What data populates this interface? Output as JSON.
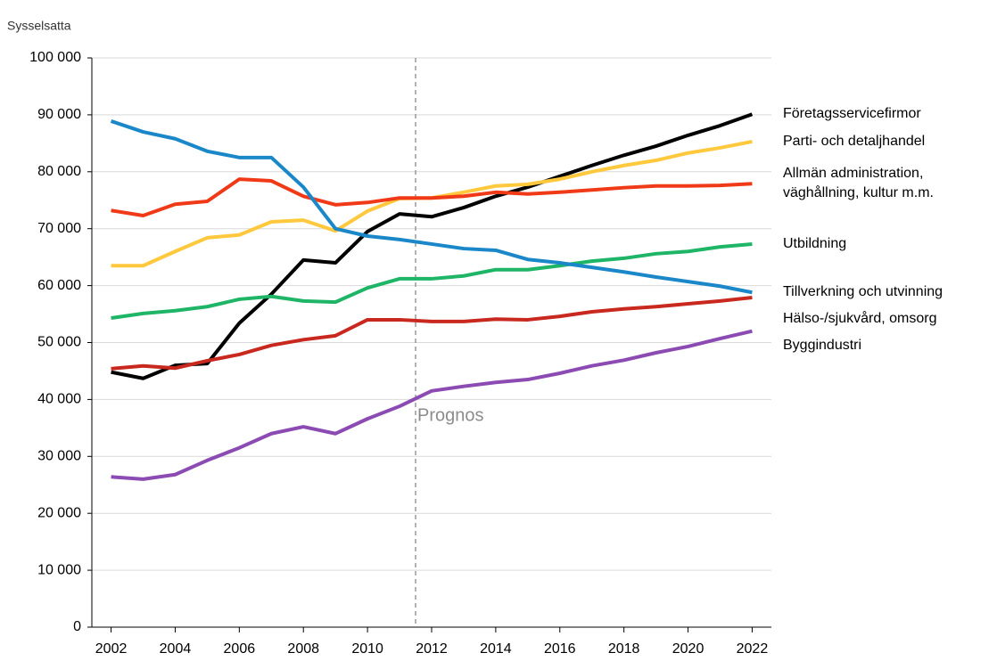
{
  "chart_data": {
    "type": "line",
    "y_label": "Sysselsatta",
    "annotation": {
      "text": "Prognos",
      "x": 2011.5
    },
    "x": [
      2002,
      2003,
      2004,
      2005,
      2006,
      2007,
      2008,
      2009,
      2010,
      2011,
      2012,
      2013,
      2014,
      2015,
      2016,
      2017,
      2018,
      2019,
      2020,
      2021,
      2022
    ],
    "xlim": [
      2001.4,
      2022.6
    ],
    "xticks": [
      2002,
      2004,
      2006,
      2008,
      2010,
      2012,
      2014,
      2016,
      2018,
      2020,
      2022
    ],
    "ylim": [
      0,
      100000
    ],
    "yticks": [
      0,
      {
        "value": 10000,
        "label": "10 000"
      },
      {
        "value": 20000,
        "label": "20 000"
      },
      {
        "value": 30000,
        "label": "30 000"
      },
      {
        "value": 40000,
        "label": "40 000"
      },
      {
        "value": 50000,
        "label": "50 000"
      },
      {
        "value": 60000,
        "label": "60 000"
      },
      {
        "value": 70000,
        "label": "70 000"
      },
      {
        "value": 80000,
        "label": "80 000"
      },
      {
        "value": 90000,
        "label": "90 000"
      },
      {
        "value": 100000,
        "label": "100 000"
      }
    ],
    "grid": true,
    "series": [
      {
        "name": "Företagsservicefirmor",
        "color": "#000000",
        "values": [
          44800,
          43700,
          46000,
          46300,
          53400,
          58500,
          64500,
          64000,
          69500,
          72600,
          72100,
          73700,
          75700,
          77300,
          79200,
          81100,
          82900,
          84500,
          86400,
          88100,
          90100
        ]
      },
      {
        "name": "Parti- och detaljhandel",
        "color": "#ffc83d",
        "values": [
          63500,
          63500,
          66000,
          68400,
          68900,
          71200,
          71500,
          69600,
          73100,
          75300,
          75400,
          76400,
          77500,
          77800,
          78700,
          80000,
          81100,
          82000,
          83300,
          84200,
          85300
        ]
      },
      {
        "name": "Allmän administration, väghållning, kultur m.m.",
        "color": "#f03a17",
        "values": [
          73200,
          72300,
          74300,
          74800,
          78700,
          78400,
          75700,
          74200,
          74600,
          75400,
          75400,
          75700,
          76400,
          76100,
          76400,
          76800,
          77200,
          77500,
          77500,
          77600,
          77900
        ]
      },
      {
        "name": "Utbildning",
        "color": "#1eb566",
        "values": [
          54300,
          55100,
          55600,
          56300,
          57600,
          58100,
          57300,
          57100,
          59600,
          61200,
          61200,
          61700,
          62800,
          62800,
          63500,
          64300,
          64800,
          65600,
          66000,
          66800,
          67300
        ]
      },
      {
        "name": "Tillverkning och utvinning",
        "color": "#1a87c9",
        "values": [
          88900,
          87000,
          85800,
          83600,
          82500,
          82500,
          77300,
          70000,
          68700,
          68100,
          67300,
          66500,
          66200,
          64600,
          64000,
          63200,
          62400,
          61500,
          60700,
          59900,
          58800
        ]
      },
      {
        "name": "Hälso-/sjukvård, omsorg",
        "color": "#c8281e",
        "values": [
          45400,
          45900,
          45500,
          46800,
          47900,
          49500,
          50500,
          51200,
          54000,
          54000,
          53700,
          53700,
          54100,
          54000,
          54600,
          55400,
          55900,
          56300,
          56800,
          57300,
          57900
        ]
      },
      {
        "name": "Byggindustri",
        "color": "#8b4bb3",
        "values": [
          26400,
          26000,
          26800,
          29300,
          31500,
          34000,
          35200,
          34000,
          36600,
          38800,
          41500,
          42300,
          43000,
          43500,
          44600,
          45900,
          46900,
          48200,
          49300,
          50700,
          52000
        ]
      }
    ]
  }
}
